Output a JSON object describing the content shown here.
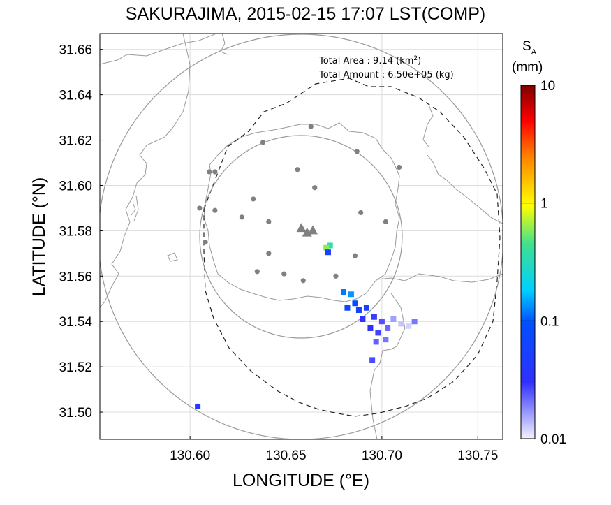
{
  "title": "SAKURAJIMA, 2015-02-15 17:07 LST(COMP)",
  "axes": {
    "xlabel": "LONGITUDE (°E)",
    "ylabel": "LATITUDE (°N)",
    "x_ticks": [
      "130.60",
      "130.65",
      "130.70",
      "130.75"
    ],
    "y_ticks": [
      "31.66",
      "31.64",
      "31.62",
      "31.60",
      "31.58",
      "31.56",
      "31.54",
      "31.52",
      "31.50"
    ]
  },
  "stats": {
    "area_label": "Total Area   : 9.14 (km",
    "area_sup": "2",
    "area_close": ")",
    "amount": "Total Amount : 6.50e+05 (kg)"
  },
  "colorbar": {
    "label_main": "S",
    "label_sub": "A",
    "unit": "(mm)",
    "ticks": [
      "10",
      "1",
      "0.1",
      "0.01"
    ],
    "scale": "log"
  },
  "chart_data": {
    "type": "heatmap",
    "xlim": [
      130.553,
      130.763
    ],
    "ylim": [
      31.488,
      31.667
    ],
    "grid": true,
    "vents": [
      [
        130.658,
        31.581
      ],
      [
        130.661,
        31.579
      ],
      [
        130.664,
        31.58
      ]
    ],
    "stations": [
      [
        130.663,
        31.626
      ],
      [
        130.638,
        31.619
      ],
      [
        130.687,
        31.615
      ],
      [
        130.61,
        31.606
      ],
      [
        130.613,
        31.606
      ],
      [
        130.656,
        31.607
      ],
      [
        130.709,
        31.608
      ],
      [
        130.665,
        31.599
      ],
      [
        130.633,
        31.594
      ],
      [
        130.605,
        31.59
      ],
      [
        130.613,
        31.589
      ],
      [
        130.689,
        31.588
      ],
      [
        130.627,
        31.586
      ],
      [
        130.641,
        31.584
      ],
      [
        130.702,
        31.584
      ],
      [
        130.608,
        31.575
      ],
      [
        130.641,
        31.57
      ],
      [
        130.686,
        31.569
      ],
      [
        130.635,
        31.562
      ],
      [
        130.649,
        31.561
      ],
      [
        130.676,
        31.56
      ],
      [
        130.659,
        31.558
      ]
    ],
    "ash_cells": [
      {
        "lon": 130.673,
        "lat": 31.5735,
        "v": 0.35
      },
      {
        "lon": 130.671,
        "lat": 31.5725,
        "v": 0.6
      },
      {
        "lon": 130.672,
        "lat": 31.5705,
        "v": 0.05
      },
      {
        "lon": 130.68,
        "lat": 31.553,
        "v": 0.12
      },
      {
        "lon": 130.684,
        "lat": 31.552,
        "v": 0.14
      },
      {
        "lon": 130.686,
        "lat": 31.548,
        "v": 0.09
      },
      {
        "lon": 130.682,
        "lat": 31.546,
        "v": 0.07
      },
      {
        "lon": 130.688,
        "lat": 31.545,
        "v": 0.06
      },
      {
        "lon": 130.692,
        "lat": 31.546,
        "v": 0.05
      },
      {
        "lon": 130.69,
        "lat": 31.541,
        "v": 0.03
      },
      {
        "lon": 130.696,
        "lat": 31.542,
        "v": 0.028
      },
      {
        "lon": 130.7,
        "lat": 31.54,
        "v": 0.025
      },
      {
        "lon": 130.694,
        "lat": 31.537,
        "v": 0.03
      },
      {
        "lon": 130.698,
        "lat": 31.535,
        "v": 0.027
      },
      {
        "lon": 130.703,
        "lat": 31.537,
        "v": 0.022
      },
      {
        "lon": 130.706,
        "lat": 31.541,
        "v": 0.016
      },
      {
        "lon": 130.71,
        "lat": 31.539,
        "v": 0.013
      },
      {
        "lon": 130.714,
        "lat": 31.538,
        "v": 0.012
      },
      {
        "lon": 130.697,
        "lat": 31.531,
        "v": 0.023
      },
      {
        "lon": 130.702,
        "lat": 31.532,
        "v": 0.02
      },
      {
        "lon": 130.717,
        "lat": 31.54,
        "v": 0.02
      },
      {
        "lon": 130.695,
        "lat": 31.523,
        "v": 0.026
      },
      {
        "lon": 130.604,
        "lat": 31.5025,
        "v": 0.04
      }
    ]
  }
}
